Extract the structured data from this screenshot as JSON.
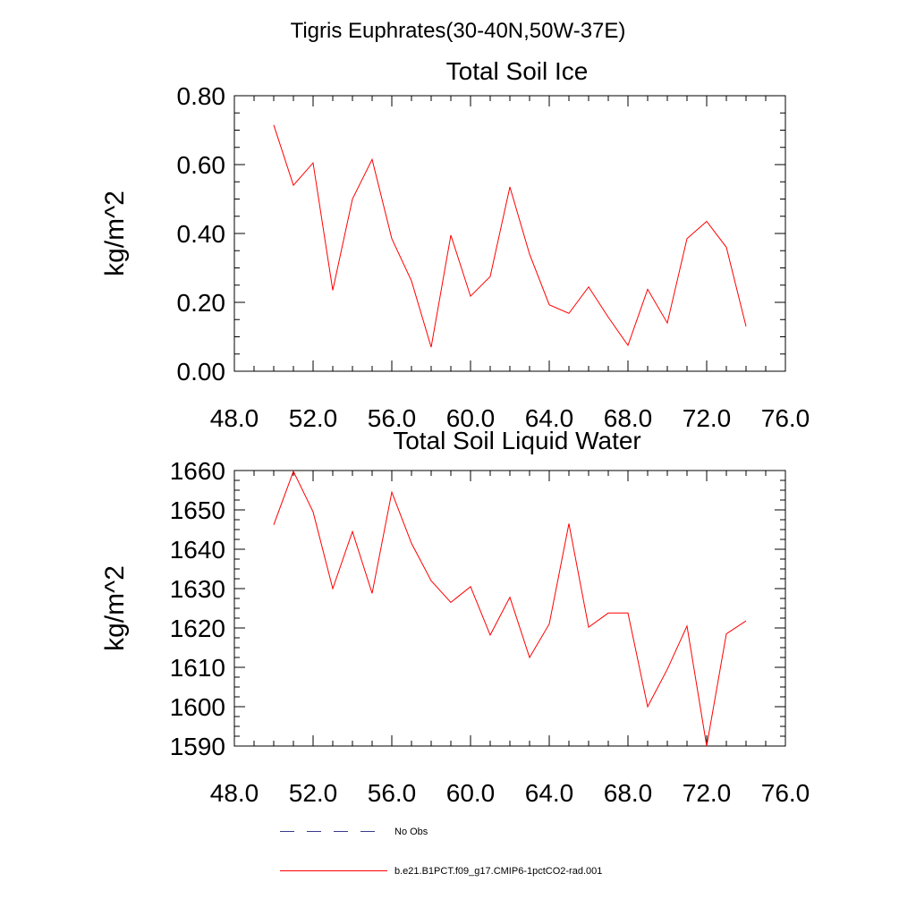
{
  "figure": {
    "suptitle": "Tigris Euphrates(30-40N,50W-37E)"
  },
  "legend": {
    "entries": [
      {
        "label": "No Obs",
        "color": "#3a3a8c",
        "style": "dashed"
      },
      {
        "label": "b.e21.B1PCT.f09_g17.CMIP6-1pctCO2-rad.001",
        "color": "#ff0000",
        "style": "solid"
      }
    ]
  },
  "chart_data": [
    {
      "type": "line",
      "title": "Total Soil Ice",
      "xlabel": "",
      "ylabel": "kg/m^2",
      "xlim": [
        48,
        76
      ],
      "ylim": [
        0,
        0.8
      ],
      "xticks": [
        "48.0",
        "52.0",
        "56.0",
        "60.0",
        "64.0",
        "68.0",
        "72.0",
        "76.0"
      ],
      "yticks": [
        "0.00",
        "0.20",
        "0.40",
        "0.60",
        "0.80"
      ],
      "grid": false,
      "series": [
        {
          "name": "b.e21.B1PCT.f09_g17.CMIP6-1pctCO2-rad.001",
          "color": "#ff0000",
          "x": [
            50,
            51,
            52,
            53,
            54,
            55,
            56,
            57,
            58,
            59,
            60,
            61,
            62,
            63,
            64,
            65,
            66,
            67,
            68,
            69,
            70,
            71,
            72,
            73,
            74
          ],
          "y": [
            0.715,
            0.54,
            0.605,
            0.235,
            0.5,
            0.615,
            0.385,
            0.262,
            0.07,
            0.395,
            0.218,
            0.275,
            0.535,
            0.34,
            0.193,
            0.168,
            0.245,
            0.157,
            0.075,
            0.238,
            0.14,
            0.385,
            0.435,
            0.36,
            0.13
          ]
        }
      ]
    },
    {
      "type": "line",
      "title": "Total Soil Liquid Water",
      "xlabel": "",
      "ylabel": "kg/m^2",
      "xlim": [
        48,
        76
      ],
      "ylim": [
        1590,
        1660
      ],
      "xticks": [
        "48.0",
        "52.0",
        "56.0",
        "60.0",
        "64.0",
        "68.0",
        "72.0",
        "76.0"
      ],
      "yticks": [
        "1590",
        "1600",
        "1610",
        "1620",
        "1630",
        "1640",
        "1650",
        "1660"
      ],
      "grid": false,
      "series": [
        {
          "name": "b.e21.B1PCT.f09_g17.CMIP6-1pctCO2-rad.001",
          "color": "#ff0000",
          "x": [
            50,
            51,
            52,
            53,
            54,
            55,
            56,
            57,
            58,
            59,
            60,
            61,
            62,
            63,
            64,
            65,
            66,
            67,
            68,
            69,
            70,
            71,
            72,
            73,
            74
          ],
          "y": [
            1646.2,
            1659.8,
            1649.5,
            1630.0,
            1644.5,
            1628.8,
            1654.5,
            1641.5,
            1632.0,
            1626.5,
            1630.5,
            1618.2,
            1627.8,
            1612.5,
            1621.0,
            1646.5,
            1620.2,
            1623.8,
            1623.8,
            1600.0,
            1609.5,
            1620.5,
            1590.0,
            1618.5,
            1621.8
          ]
        }
      ]
    }
  ]
}
